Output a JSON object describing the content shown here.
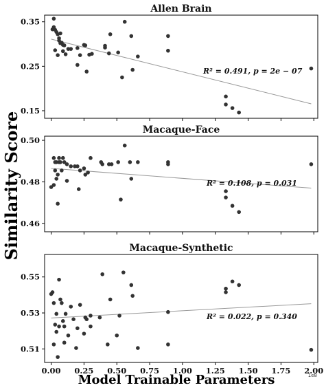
{
  "chart_data": {
    "type": "scatter",
    "xlabel": "Model Trainable Parameters",
    "ylabel": "Similarity Score",
    "x_scale_label": "1e8",
    "xlim": [
      -0.05,
      2.03
    ],
    "xticks": [
      0.0,
      0.25,
      0.5,
      0.75,
      1.0,
      1.25,
      1.5,
      1.75,
      2.0
    ],
    "xtick_labels": [
      "0.00",
      "0.25",
      "0.50",
      "0.75",
      "1.00",
      "1.25",
      "1.50",
      "1.75",
      "2.00"
    ],
    "grid": false,
    "colors": {
      "point": "#333333",
      "fit_line": "#999999",
      "axes": "#000000"
    },
    "panels": [
      {
        "title": "Allen Brain",
        "ylim": [
          0.133,
          0.365
        ],
        "yticks": [
          0.15,
          0.25,
          0.35
        ],
        "ytick_labels": [
          "0.15",
          "0.25",
          "0.35"
        ],
        "fit": {
          "slope": -0.0735,
          "intercept": 0.311
        },
        "annotation": "R² = 0.491, p = 2e − 07",
        "points": [
          {
            "x": 0.01,
            "y": 0.333
          },
          {
            "x": 0.02,
            "y": 0.357
          },
          {
            "x": 0.02,
            "y": 0.338
          },
          {
            "x": 0.03,
            "y": 0.332
          },
          {
            "x": 0.03,
            "y": 0.286
          },
          {
            "x": 0.04,
            "y": 0.327
          },
          {
            "x": 0.05,
            "y": 0.322
          },
          {
            "x": 0.05,
            "y": 0.275
          },
          {
            "x": 0.06,
            "y": 0.313
          },
          {
            "x": 0.06,
            "y": 0.308
          },
          {
            "x": 0.07,
            "y": 0.324
          },
          {
            "x": 0.07,
            "y": 0.302
          },
          {
            "x": 0.08,
            "y": 0.303
          },
          {
            "x": 0.09,
            "y": 0.298
          },
          {
            "x": 0.09,
            "y": 0.284
          },
          {
            "x": 0.1,
            "y": 0.297
          },
          {
            "x": 0.11,
            "y": 0.277
          },
          {
            "x": 0.13,
            "y": 0.289
          },
          {
            "x": 0.15,
            "y": 0.289
          },
          {
            "x": 0.2,
            "y": 0.291
          },
          {
            "x": 0.2,
            "y": 0.253
          },
          {
            "x": 0.22,
            "y": 0.275
          },
          {
            "x": 0.25,
            "y": 0.298
          },
          {
            "x": 0.26,
            "y": 0.297
          },
          {
            "x": 0.27,
            "y": 0.238
          },
          {
            "x": 0.29,
            "y": 0.276
          },
          {
            "x": 0.31,
            "y": 0.278
          },
          {
            "x": 0.41,
            "y": 0.296
          },
          {
            "x": 0.41,
            "y": 0.292
          },
          {
            "x": 0.44,
            "y": 0.279
          },
          {
            "x": 0.45,
            "y": 0.322
          },
          {
            "x": 0.51,
            "y": 0.281
          },
          {
            "x": 0.54,
            "y": 0.225
          },
          {
            "x": 0.56,
            "y": 0.35
          },
          {
            "x": 0.61,
            "y": 0.318
          },
          {
            "x": 0.62,
            "y": 0.242
          },
          {
            "x": 0.66,
            "y": 0.272
          },
          {
            "x": 0.89,
            "y": 0.318
          },
          {
            "x": 0.89,
            "y": 0.285
          },
          {
            "x": 1.33,
            "y": 0.182
          },
          {
            "x": 1.33,
            "y": 0.164
          },
          {
            "x": 1.38,
            "y": 0.156
          },
          {
            "x": 1.43,
            "y": 0.146
          },
          {
            "x": 1.98,
            "y": 0.245
          }
        ]
      },
      {
        "title": "Macaque-Face",
        "ylim": [
          0.456,
          0.502
        ],
        "yticks": [
          0.46,
          0.48,
          0.5
        ],
        "ytick_labels": [
          "0.46",
          "0.48",
          "0.50"
        ],
        "fit": {
          "slope": -0.0048,
          "intercept": 0.4865
        },
        "annotation": "R² = 0.108, p = 0.031",
        "points": [
          {
            "x": 0.0,
            "y": 0.4775
          },
          {
            "x": 0.02,
            "y": 0.4785
          },
          {
            "x": 0.02,
            "y": 0.4915
          },
          {
            "x": 0.03,
            "y": 0.4895
          },
          {
            "x": 0.03,
            "y": 0.4855
          },
          {
            "x": 0.04,
            "y": 0.4815
          },
          {
            "x": 0.04,
            "y": 0.4895
          },
          {
            "x": 0.05,
            "y": 0.4695
          },
          {
            "x": 0.05,
            "y": 0.4835
          },
          {
            "x": 0.06,
            "y": 0.4915
          },
          {
            "x": 0.06,
            "y": 0.4895
          },
          {
            "x": 0.07,
            "y": 0.4895
          },
          {
            "x": 0.08,
            "y": 0.4855
          },
          {
            "x": 0.09,
            "y": 0.4915
          },
          {
            "x": 0.1,
            "y": 0.4895
          },
          {
            "x": 0.12,
            "y": 0.4805
          },
          {
            "x": 0.12,
            "y": 0.4885
          },
          {
            "x": 0.15,
            "y": 0.4875
          },
          {
            "x": 0.18,
            "y": 0.4875
          },
          {
            "x": 0.2,
            "y": 0.4875
          },
          {
            "x": 0.21,
            "y": 0.4765
          },
          {
            "x": 0.22,
            "y": 0.4855
          },
          {
            "x": 0.25,
            "y": 0.4865
          },
          {
            "x": 0.26,
            "y": 0.4835
          },
          {
            "x": 0.28,
            "y": 0.4845
          },
          {
            "x": 0.3,
            "y": 0.4915
          },
          {
            "x": 0.38,
            "y": 0.4895
          },
          {
            "x": 0.39,
            "y": 0.4885
          },
          {
            "x": 0.44,
            "y": 0.4885
          },
          {
            "x": 0.46,
            "y": 0.4885
          },
          {
            "x": 0.51,
            "y": 0.4895
          },
          {
            "x": 0.53,
            "y": 0.4715
          },
          {
            "x": 0.56,
            "y": 0.4975
          },
          {
            "x": 0.6,
            "y": 0.4895
          },
          {
            "x": 0.61,
            "y": 0.4815
          },
          {
            "x": 0.66,
            "y": 0.4895
          },
          {
            "x": 0.89,
            "y": 0.4895
          },
          {
            "x": 0.89,
            "y": 0.4885
          },
          {
            "x": 1.33,
            "y": 0.4755
          },
          {
            "x": 1.33,
            "y": 0.4725
          },
          {
            "x": 1.38,
            "y": 0.4685
          },
          {
            "x": 1.43,
            "y": 0.4655
          },
          {
            "x": 1.98,
            "y": 0.4885
          }
        ]
      },
      {
        "title": "Macaque-Synthetic",
        "ylim": [
          0.5025,
          0.5625
        ],
        "yticks": [
          0.51,
          0.53,
          0.55
        ],
        "ytick_labels": [
          "0.51",
          "0.53",
          "0.55"
        ],
        "fit": {
          "slope": 0.004,
          "intercept": 0.5272
        },
        "annotation": "R² = 0.022, p = 0.340",
        "points": [
          {
            "x": 0.0,
            "y": 0.5405
          },
          {
            "x": 0.01,
            "y": 0.5415
          },
          {
            "x": 0.02,
            "y": 0.5125
          },
          {
            "x": 0.02,
            "y": 0.5355
          },
          {
            "x": 0.03,
            "y": 0.5235
          },
          {
            "x": 0.04,
            "y": 0.5195
          },
          {
            "x": 0.04,
            "y": 0.5295
          },
          {
            "x": 0.05,
            "y": 0.5055
          },
          {
            "x": 0.06,
            "y": 0.5485
          },
          {
            "x": 0.06,
            "y": 0.5225
          },
          {
            "x": 0.07,
            "y": 0.5375
          },
          {
            "x": 0.08,
            "y": 0.5355
          },
          {
            "x": 0.09,
            "y": 0.5255
          },
          {
            "x": 0.1,
            "y": 0.5135
          },
          {
            "x": 0.1,
            "y": 0.5225
          },
          {
            "x": 0.11,
            "y": 0.5295
          },
          {
            "x": 0.13,
            "y": 0.5175
          },
          {
            "x": 0.15,
            "y": 0.5335
          },
          {
            "x": 0.17,
            "y": 0.5265
          },
          {
            "x": 0.19,
            "y": 0.5105
          },
          {
            "x": 0.2,
            "y": 0.5215
          },
          {
            "x": 0.22,
            "y": 0.5345
          },
          {
            "x": 0.25,
            "y": 0.5185
          },
          {
            "x": 0.26,
            "y": 0.5275
          },
          {
            "x": 0.27,
            "y": 0.5265
          },
          {
            "x": 0.3,
            "y": 0.5285
          },
          {
            "x": 0.3,
            "y": 0.5225
          },
          {
            "x": 0.37,
            "y": 0.5275
          },
          {
            "x": 0.39,
            "y": 0.5515
          },
          {
            "x": 0.43,
            "y": 0.5125
          },
          {
            "x": 0.45,
            "y": 0.5375
          },
          {
            "x": 0.5,
            "y": 0.5175
          },
          {
            "x": 0.52,
            "y": 0.5285
          },
          {
            "x": 0.55,
            "y": 0.5525
          },
          {
            "x": 0.61,
            "y": 0.5455
          },
          {
            "x": 0.62,
            "y": 0.5395
          },
          {
            "x": 0.66,
            "y": 0.5105
          },
          {
            "x": 0.89,
            "y": 0.5305
          },
          {
            "x": 0.89,
            "y": 0.5125
          },
          {
            "x": 1.33,
            "y": 0.5435
          },
          {
            "x": 1.33,
            "y": 0.5415
          },
          {
            "x": 1.38,
            "y": 0.5475
          },
          {
            "x": 1.43,
            "y": 0.5455
          },
          {
            "x": 1.98,
            "y": 0.5095
          }
        ]
      }
    ]
  }
}
